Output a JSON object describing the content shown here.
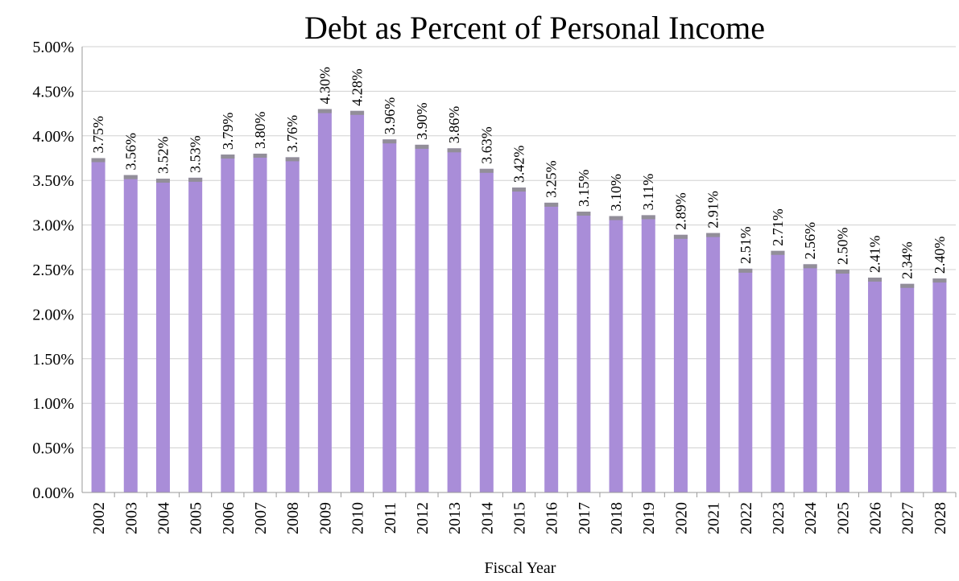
{
  "chart_data": {
    "type": "bar",
    "title": "Debt as Percent of Personal Income",
    "xlabel": "Fiscal Year",
    "ylabel": "",
    "ylim": [
      0,
      5
    ],
    "yticks": [
      "0.00%",
      "0.50%",
      "1.00%",
      "1.50%",
      "2.00%",
      "2.50%",
      "3.00%",
      "3.50%",
      "4.00%",
      "4.50%",
      "5.00%"
    ],
    "grid": true,
    "categories": [
      "2002",
      "2003",
      "2004",
      "2005",
      "2006",
      "2007",
      "2008",
      "2009",
      "2010",
      "2011",
      "2012",
      "2013",
      "2014",
      "2015",
      "2016",
      "2017",
      "2018",
      "2019",
      "2020",
      "2021",
      "2022",
      "2023",
      "2024",
      "2025",
      "2026",
      "2027",
      "2028"
    ],
    "values": [
      3.75,
      3.56,
      3.52,
      3.53,
      3.79,
      3.8,
      3.76,
      4.3,
      4.28,
      3.96,
      3.9,
      3.86,
      3.63,
      3.42,
      3.25,
      3.15,
      3.1,
      3.11,
      2.89,
      2.91,
      2.51,
      2.71,
      2.56,
      2.5,
      2.41,
      2.34,
      2.4
    ],
    "data_labels": [
      "3.75%",
      "3.56%",
      "3.52%",
      "3.53%",
      "3.79%",
      "3.80%",
      "3.76%",
      "4.30%",
      "4.28%",
      "3.96%",
      "3.90%",
      "3.86%",
      "3.63%",
      "3.42%",
      "3.25%",
      "3.15%",
      "3.10%",
      "3.11%",
      "2.89%",
      "2.91%",
      "2.51%",
      "2.71%",
      "2.56%",
      "2.50%",
      "2.41%",
      "2.34%",
      "2.40%"
    ],
    "colors": {
      "bar": "#a98dd8",
      "bar_cap": "#8e8e8e",
      "grid": "#d0d0d0",
      "axis": "#9a9a9a",
      "text": "#000000"
    }
  }
}
